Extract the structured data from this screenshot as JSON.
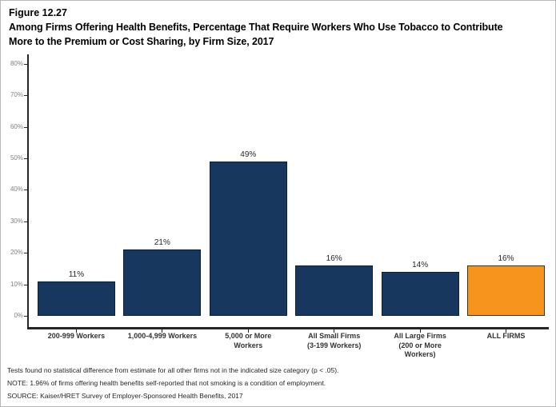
{
  "figure": {
    "number": "Figure 12.27",
    "title": "Among Firms Offering Health Benefits, Percentage That Require Workers Who Use Tobacco to Contribute More to the Premium or Cost Sharing, by Firm Size, 2017"
  },
  "chart_data": {
    "type": "bar",
    "categories": [
      "200-999 Workers",
      "1,000-4,999 Workers",
      "5,000 or More Workers",
      "All Small Firms (3-199 Workers)",
      "All Large Firms (200 or More Workers)",
      "ALL FIRMS"
    ],
    "category_lines": [
      [
        "200-999 Workers"
      ],
      [
        "1,000-4,999 Workers"
      ],
      [
        "5,000 or More",
        "Workers"
      ],
      [
        "All Small Firms",
        "(3-199 Workers)"
      ],
      [
        "All Large Firms",
        "(200 or More",
        "Workers)"
      ],
      [
        "ALL FIRMS"
      ]
    ],
    "values": [
      11,
      21,
      49,
      16,
      14,
      16
    ],
    "value_labels": [
      "11%",
      "21%",
      "49%",
      "16%",
      "14%",
      "16%"
    ],
    "bar_colors": [
      "#17375E",
      "#17375E",
      "#17375E",
      "#17375E",
      "#17375E",
      "#F7941E"
    ],
    "bar_border_colors": [
      "#0c1f38",
      "#0c1f38",
      "#0c1f38",
      "#0c1f38",
      "#0c1f38",
      "#4a3208"
    ],
    "title": "Among Firms Offering Health Benefits, Percentage That Require Workers Who Use Tobacco to Contribute More to the Premium or Cost Sharing, by Firm Size, 2017",
    "xlabel": "",
    "ylabel": "",
    "ylim": [
      0,
      80
    ],
    "y_ticks": [
      0,
      10,
      20,
      30,
      40,
      50,
      60,
      70,
      80
    ],
    "y_tick_labels": [
      "0%",
      "10%",
      "20%",
      "30%",
      "40%",
      "50%",
      "60%",
      "70%",
      "80%"
    ],
    "grid": false,
    "legend": false,
    "default_bar_color": "#17375E",
    "highlight_bar_color": "#F7941E"
  },
  "footnotes": [
    "Tests found no statistical difference from estimate for all other firms not in the indicated size category (p < .05).",
    "NOTE: 1.96% of firms offering health benefits self-reported that not smoking is a condition of employment.",
    "SOURCE: Kaiser/HRET Survey of Employer-Sponsored Health Benefits, 2017"
  ]
}
